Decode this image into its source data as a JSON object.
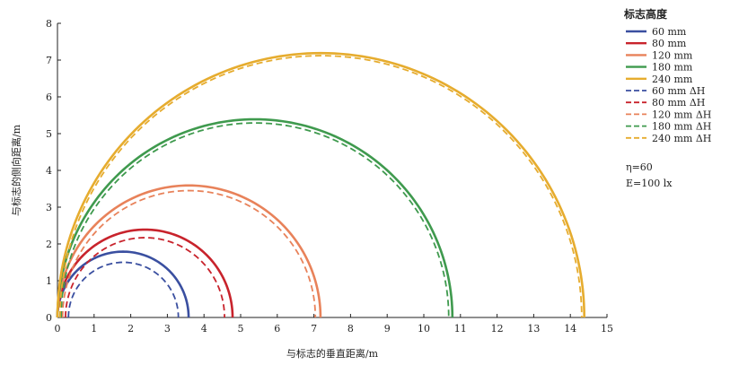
{
  "chart_data": {
    "type": "line",
    "xlabel": "与标志的垂直距离/m",
    "ylabel": "与标志的侧向距离/m",
    "xlim": [
      0,
      15
    ],
    "ylim": [
      0,
      8
    ],
    "xticks": [
      0,
      1,
      2,
      3,
      4,
      5,
      6,
      7,
      8,
      9,
      10,
      11,
      12,
      13,
      14,
      15
    ],
    "yticks": [
      0,
      1,
      2,
      3,
      4,
      5,
      6,
      7,
      8
    ],
    "grid": false,
    "legend_position": "right",
    "legend_title": "标志高度",
    "annotations": [
      "η=60",
      "E=100 lx"
    ],
    "colors": {
      "60": "#3a4fa0",
      "80": "#c8232c",
      "120": "#e8825a",
      "180": "#3f9a4e",
      "240": "#e6ac2e"
    },
    "series": [
      {
        "name": "60  mm",
        "style": "solid",
        "color": "#3a4fa0",
        "x_start": 0.0,
        "x_end": 3.58,
        "peak_y": 1.79
      },
      {
        "name": "80  mm",
        "style": "solid",
        "color": "#c8232c",
        "x_start": 0.0,
        "x_end": 4.78,
        "peak_y": 2.39
      },
      {
        "name": "120  mm",
        "style": "solid",
        "color": "#e8825a",
        "x_start": 0.0,
        "x_end": 7.18,
        "peak_y": 3.59
      },
      {
        "name": "180  mm",
        "style": "solid",
        "color": "#3f9a4e",
        "x_start": 0.0,
        "x_end": 10.78,
        "peak_y": 5.39
      },
      {
        "name": "240  mm",
        "style": "solid",
        "color": "#e6ac2e",
        "x_start": 0.0,
        "x_end": 14.38,
        "peak_y": 7.19
      },
      {
        "name": "60  mm ΔH",
        "style": "dashed",
        "color": "#3a4fa0",
        "x_start": 0.3,
        "x_end": 3.3,
        "peak_y": 1.5
      },
      {
        "name": "80  mm ΔH",
        "style": "dashed",
        "color": "#c8232c",
        "x_start": 0.22,
        "x_end": 4.56,
        "peak_y": 2.17
      },
      {
        "name": "120  mm ΔH",
        "style": "dashed",
        "color": "#e8825a",
        "x_start": 0.14,
        "x_end": 7.04,
        "peak_y": 3.45
      },
      {
        "name": "180  mm ΔH",
        "style": "dashed",
        "color": "#3f9a4e",
        "x_start": 0.1,
        "x_end": 10.68,
        "peak_y": 5.29
      },
      {
        "name": "240  mm ΔH",
        "style": "dashed",
        "color": "#e6ac2e",
        "x_start": 0.07,
        "x_end": 14.31,
        "peak_y": 7.12
      }
    ]
  }
}
